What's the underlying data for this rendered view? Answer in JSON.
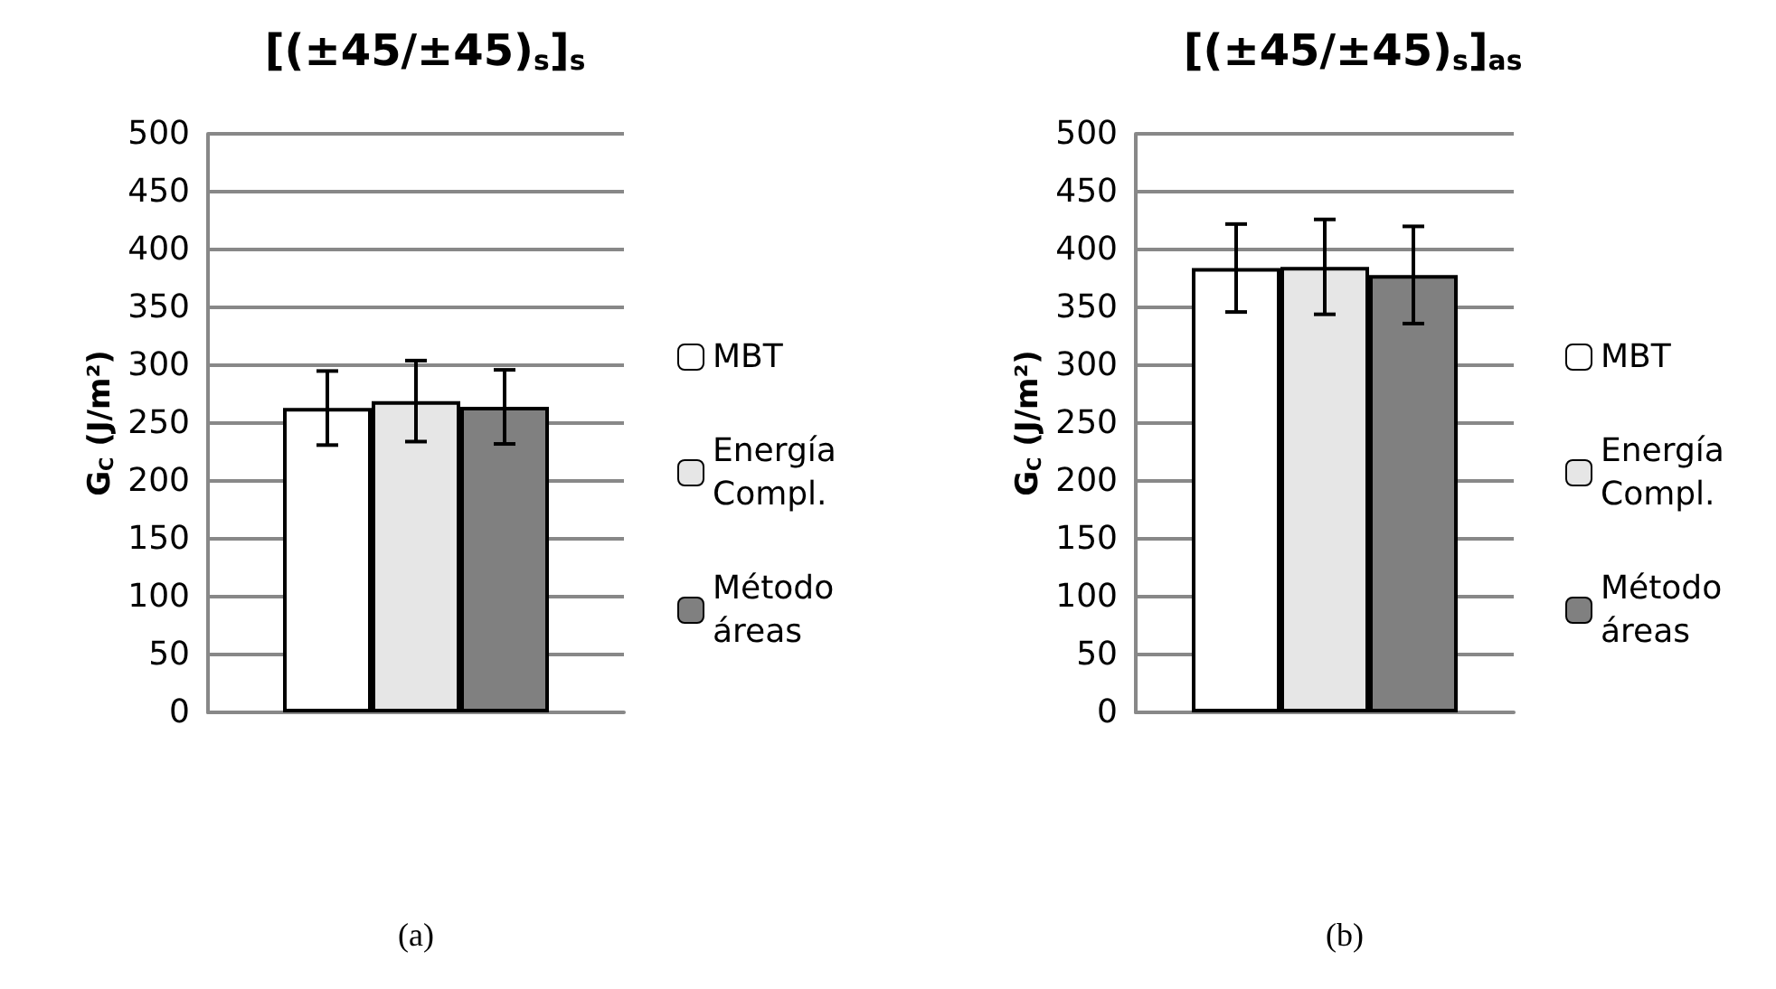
{
  "chart_data": [
    {
      "type": "bar",
      "title": "[(±45/±45)$_{s}$]$_{s}$",
      "ylabel": "G$_{C}$ (J/m²)",
      "categories": [
        null
      ],
      "series": [
        {
          "name": "MBT",
          "color": "#ffffff",
          "values": [
            263
          ],
          "errors": [
            32
          ]
        },
        {
          "name": "Energía Compl.",
          "color": "#e6e6e6",
          "values": [
            269
          ],
          "errors": [
            35
          ]
        },
        {
          "name": "Método áreas",
          "color": "#808080",
          "values": [
            264
          ],
          "errors": [
            32
          ]
        }
      ],
      "ylim": [
        0,
        500
      ],
      "yticks": [
        0,
        50,
        100,
        150,
        200,
        250,
        300,
        350,
        400,
        450,
        500
      ],
      "grid": "y",
      "legend": "right",
      "annotations": [
        "(a)"
      ]
    },
    {
      "type": "bar",
      "title": "[(±45/±45)$_{s}$]$_{as}$",
      "ylabel": "G$_{C}$ (J/m²)",
      "categories": [
        null
      ],
      "series": [
        {
          "name": "MBT",
          "color": "#ffffff",
          "values": [
            384
          ],
          "errors": [
            38
          ]
        },
        {
          "name": "Energía Compl.",
          "color": "#e6e6e6",
          "values": [
            385
          ],
          "errors": [
            41
          ]
        },
        {
          "name": "Método áreas",
          "color": "#808080",
          "values": [
            378
          ],
          "errors": [
            42
          ]
        }
      ],
      "ylim": [
        0,
        500
      ],
      "yticks": [
        0,
        50,
        100,
        150,
        200,
        250,
        300,
        350,
        400,
        450,
        500
      ],
      "grid": "y",
      "legend": "right",
      "annotations": [
        "(b)"
      ]
    }
  ]
}
